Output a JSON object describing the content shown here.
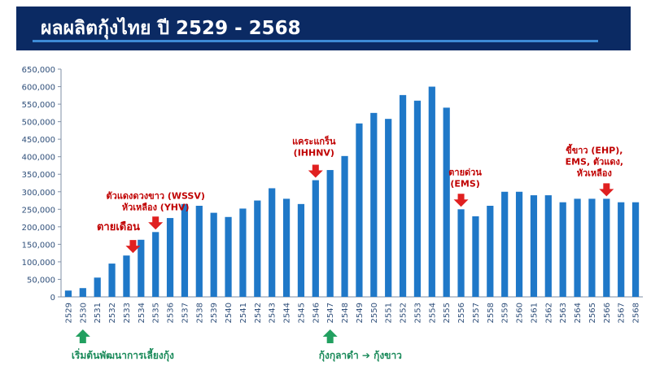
{
  "header": {
    "title": "ผลผลิตกุ้งไทย ปี 2529 - 2568"
  },
  "colors": {
    "bar": "#1f78c8",
    "header_bg": "#0b2a63",
    "annotation": "#c00000",
    "note": "#1a8a5a",
    "arrow_red": "#e02020",
    "arrow_green": "#22a060"
  },
  "chart_data": {
    "type": "bar",
    "title": "ผลผลิตกุ้งไทย ปี 2529 - 2568",
    "xlabel": "",
    "ylabel": "",
    "ylim": [
      0,
      650000
    ],
    "yticks": [
      "0",
      "50,000",
      "100,000",
      "150,000",
      "200,000",
      "250,000",
      "300,000",
      "350,000",
      "400,000",
      "450,000",
      "500,000",
      "550,000",
      "600,000",
      "650,000"
    ],
    "grid": false,
    "categories": [
      "2529",
      "2530",
      "2531",
      "2532",
      "2533",
      "2534",
      "2535",
      "2536",
      "2537",
      "2538",
      "2539",
      "2540",
      "2541",
      "2542",
      "2543",
      "2544",
      "2545",
      "2546",
      "2547",
      "2548",
      "2549",
      "2550",
      "2551",
      "2552",
      "2553",
      "2554",
      "2555",
      "2556",
      "2557",
      "2558",
      "2559",
      "2560",
      "2561",
      "2562",
      "2563",
      "2564",
      "2565",
      "2566",
      "2567",
      "2568"
    ],
    "values": [
      18000,
      25000,
      55000,
      95000,
      118000,
      163000,
      185000,
      225000,
      265000,
      260000,
      240000,
      228000,
      252000,
      275000,
      310000,
      280000,
      265000,
      333000,
      362000,
      402000,
      495000,
      525000,
      508000,
      576000,
      560000,
      600000,
      540000,
      250000,
      230000,
      260000,
      300000,
      300000,
      290000,
      290000,
      270000,
      280000,
      280000,
      280000,
      270000,
      270000
    ],
    "annotations": [
      {
        "lines": [
          "ตายเดือน"
        ],
        "category": "2533",
        "big": true
      },
      {
        "lines": [
          "ตัวแดงดวงขาว (WSSV)",
          "หัวเหลือง (YHV)"
        ],
        "category": "2535",
        "big": false
      },
      {
        "lines": [
          "แคระแกร็น",
          "(IHHNV)"
        ],
        "category": "2546",
        "big": false
      },
      {
        "lines": [
          "ตายด่วน",
          "(EMS)"
        ],
        "category": "2556",
        "big": false
      },
      {
        "lines": [
          "ขี้ขาว (EHP),",
          "EMS, ตัวแดง,",
          "หัวเหลือง"
        ],
        "category": "2566",
        "big": false
      }
    ],
    "notes": [
      {
        "text": "เริ่มต้นพัฒนาการเลี้ยงกุ้ง",
        "category": "2530"
      },
      {
        "text": "กุ้งกุลาดำ ➔ กุ้งขาว",
        "category": "2547"
      }
    ]
  }
}
